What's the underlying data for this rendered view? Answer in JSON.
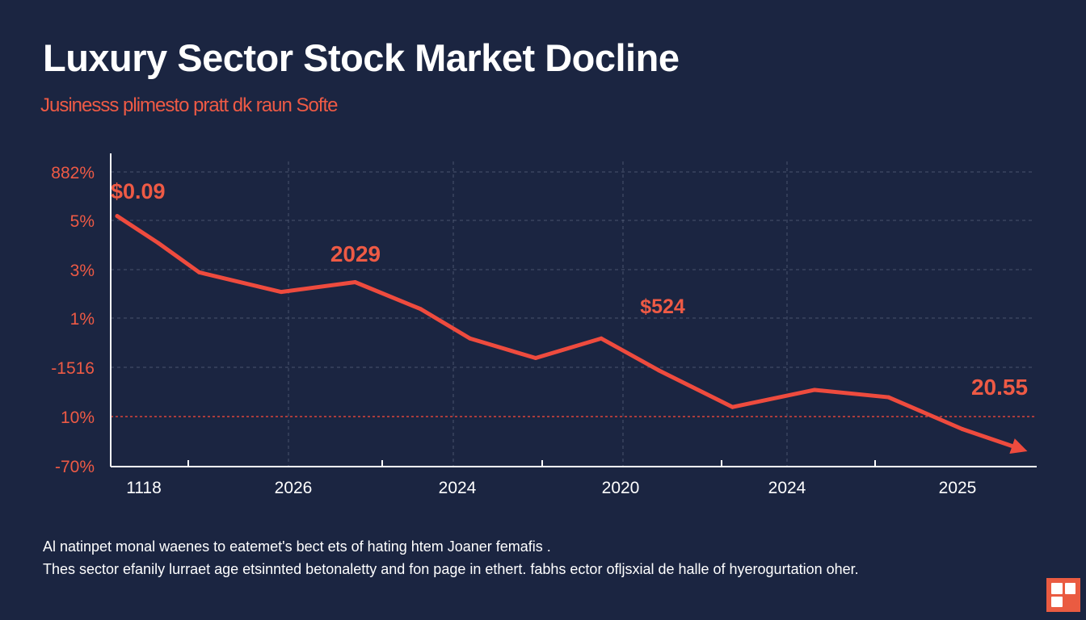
{
  "header": {
    "title": "Luxury Sector Stock Market Docline",
    "subtitle": "Jusinesss plimesto pratt dk raun Softe"
  },
  "captions": [
    "Al natinpet monal waenes to eatemet's bect ets of hating htem Joaner femafis .",
    "Thes sector efanily lurraet age etsinnted betonaletty and fon page in ethert. fabhs ector ofljsxial de halle of hyerogurtation oher."
  ],
  "colors": {
    "background": "#1b2541",
    "accent": "#ee4b3e",
    "label": "#ee5a45",
    "axis": "#ffffff",
    "grid": "#5b6580"
  },
  "chart_data": {
    "type": "line",
    "title": "Luxury Sector Stock Market Docline",
    "y_tick_labels": [
      "882%",
      "5%",
      "3%",
      "1%",
      "-1516",
      "10%",
      "-70%"
    ],
    "x_tick_labels": [
      "1118",
      "2026",
      "2024",
      "2020",
      "2024",
      "2025"
    ],
    "x_range": [
      0,
      11
    ],
    "y_range": [
      0,
      6
    ],
    "series": [
      {
        "x": [
          0,
          0.5,
          1.0,
          2.0,
          2.9,
          3.7,
          4.3,
          5.1,
          5.9,
          6.6,
          7.5,
          8.5,
          9.4,
          10.3,
          11.0
        ],
        "y": [
          5.1,
          4.55,
          3.95,
          3.55,
          3.75,
          3.2,
          2.6,
          2.2,
          2.6,
          1.95,
          1.2,
          1.55,
          1.4,
          0.75,
          0.35
        ]
      }
    ],
    "annotations": [
      "$0.09",
      "2029",
      "$524",
      "20.55"
    ],
    "dashed_reference_tick": "10%",
    "grid": true,
    "trend": "down-arrow"
  }
}
